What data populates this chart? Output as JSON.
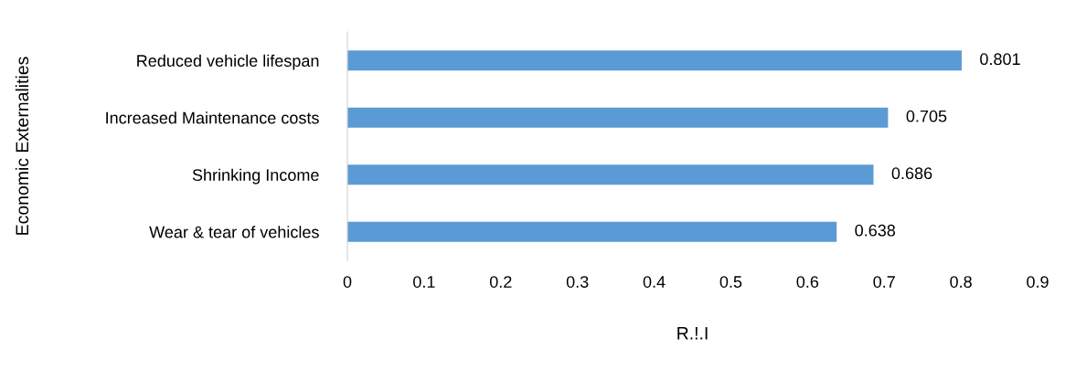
{
  "chart_data": {
    "type": "bar",
    "orientation": "horizontal",
    "xlabel": "R.!.I",
    "ylabel": "Economic Externalities",
    "categories": [
      "Reduced vehicle lifespan",
      "Increased Maintenance costs",
      "Shrinking Income",
      "Wear & tear of vehicles"
    ],
    "values": [
      0.801,
      0.705,
      0.686,
      0.638
    ],
    "color": "#5b9bd5",
    "data_labels": true,
    "xlim": [
      0,
      0.9
    ],
    "xticks": [
      0,
      0.1,
      0.2,
      0.3,
      0.4,
      0.5,
      0.6,
      0.7,
      0.8,
      0.9
    ],
    "grid": false,
    "legend": false
  }
}
